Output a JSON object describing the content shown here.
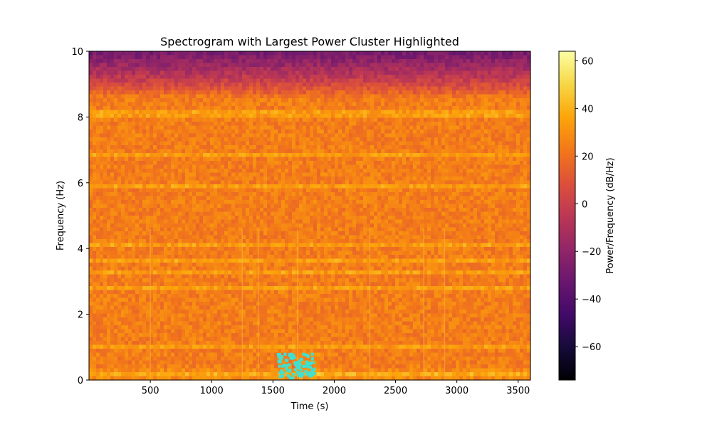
{
  "chart_data": {
    "type": "heatmap",
    "title": "Spectrogram with Largest Power Cluster Highlighted",
    "xlabel": "Time (s)",
    "ylabel": "Frequency (Hz)",
    "colorbar_label": "Power/Frequency (dB/Hz)",
    "colormap": "inferno",
    "xlim": [
      0,
      3600
    ],
    "ylim": [
      0,
      10
    ],
    "x_ticks": [
      500,
      1000,
      1500,
      2000,
      2500,
      3000,
      3500
    ],
    "y_ticks": [
      0,
      2,
      4,
      6,
      8,
      10
    ],
    "color_range": [
      -74,
      64
    ],
    "colorbar_ticks": [
      -60,
      -40,
      -20,
      0,
      20,
      40,
      60
    ],
    "typical_power_db": 24,
    "upper_band_rolloff": {
      "from_hz": 8.6,
      "to_hz": 10,
      "power_at_top_db": -30
    },
    "bright_horizontal_lines_hz": [
      0.15,
      1.0,
      2.8,
      3.3,
      3.6,
      4.1,
      5.9,
      6.8,
      8.1
    ],
    "bright_vertical_lines_s": [
      500,
      1250,
      1380,
      1700,
      2290,
      2730,
      2900
    ],
    "highlighted_cluster": {
      "color": "#40e0d0",
      "time_range_s": [
        1540,
        1840
      ],
      "freq_range_hz": [
        0.05,
        0.8
      ]
    },
    "grid": false
  }
}
